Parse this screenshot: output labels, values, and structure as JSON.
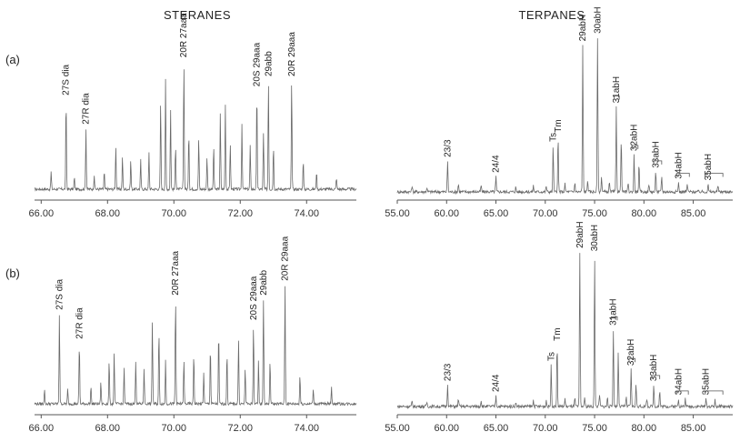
{
  "headers": {
    "steranes": "STERANES",
    "terpanes": "TERPANES"
  },
  "rows": [
    "(a)",
    "(b)"
  ],
  "chart_data": [
    {
      "type": "line",
      "panel": "steranes",
      "row": "(a)",
      "xlim": [
        65.8,
        75.5
      ],
      "ticks": [
        "66.00",
        "68.00",
        "70.00",
        "72.00",
        "74.00"
      ],
      "tick_values": [
        66,
        68,
        70,
        72,
        74
      ],
      "baseline": 0.05,
      "peaks": [
        {
          "x": 66.3,
          "h": 0.12
        },
        {
          "x": 66.75,
          "h": 0.62,
          "label": "27S dia"
        },
        {
          "x": 67.0,
          "h": 0.08
        },
        {
          "x": 67.35,
          "h": 0.42,
          "label": "27R dia"
        },
        {
          "x": 67.6,
          "h": 0.1
        },
        {
          "x": 67.9,
          "h": 0.12
        },
        {
          "x": 68.25,
          "h": 0.3
        },
        {
          "x": 68.45,
          "h": 0.22
        },
        {
          "x": 68.7,
          "h": 0.2
        },
        {
          "x": 69.0,
          "h": 0.2
        },
        {
          "x": 69.25,
          "h": 0.25
        },
        {
          "x": 69.6,
          "h": 0.6
        },
        {
          "x": 69.75,
          "h": 0.75
        },
        {
          "x": 69.9,
          "h": 0.55
        },
        {
          "x": 70.05,
          "h": 0.3
        },
        {
          "x": 70.3,
          "h": 0.88,
          "label": "20R 27aaa"
        },
        {
          "x": 70.45,
          "h": 0.4
        },
        {
          "x": 70.75,
          "h": 0.35
        },
        {
          "x": 71.0,
          "h": 0.22
        },
        {
          "x": 71.2,
          "h": 0.3
        },
        {
          "x": 71.4,
          "h": 0.52
        },
        {
          "x": 71.55,
          "h": 0.58
        },
        {
          "x": 71.7,
          "h": 0.32
        },
        {
          "x": 72.05,
          "h": 0.45
        },
        {
          "x": 72.3,
          "h": 0.3
        },
        {
          "x": 72.5,
          "h": 0.68,
          "label": "20S 29aaa"
        },
        {
          "x": 72.7,
          "h": 0.38
        },
        {
          "x": 72.85,
          "h": 0.75,
          "label": "29abb"
        },
        {
          "x": 73.0,
          "h": 0.3
        },
        {
          "x": 73.55,
          "h": 0.75,
          "label": "20R 29aaa"
        },
        {
          "x": 73.9,
          "h": 0.2
        },
        {
          "x": 74.3,
          "h": 0.12
        },
        {
          "x": 74.9,
          "h": 0.08
        }
      ]
    },
    {
      "type": "line",
      "panel": "terpanes",
      "row": "(a)",
      "xlim": [
        55.0,
        89.0
      ],
      "ticks": [
        "55.00",
        "60.00",
        "65.00",
        "70.00",
        "75.00",
        "80.00",
        "85.00"
      ],
      "tick_values": [
        55,
        60,
        65,
        70,
        75,
        80,
        85
      ],
      "baseline": 0.03,
      "peaks": [
        {
          "x": 56.5,
          "h": 0.04
        },
        {
          "x": 58.0,
          "h": 0.03
        },
        {
          "x": 60.1,
          "h": 0.2,
          "label": "23/3"
        },
        {
          "x": 61.2,
          "h": 0.05
        },
        {
          "x": 63.5,
          "h": 0.04
        },
        {
          "x": 65.0,
          "h": 0.1,
          "label": "24/4"
        },
        {
          "x": 67.0,
          "h": 0.03
        },
        {
          "x": 68.8,
          "h": 0.04
        },
        {
          "x": 70.1,
          "h": 0.04
        },
        {
          "x": 70.8,
          "h": 0.3,
          "label": "Ts"
        },
        {
          "x": 71.3,
          "h": 0.36,
          "label": "Tm"
        },
        {
          "x": 72.0,
          "h": 0.05
        },
        {
          "x": 73.0,
          "h": 0.06
        },
        {
          "x": 73.8,
          "h": 0.95,
          "label": "29abH"
        },
        {
          "x": 74.3,
          "h": 0.08
        },
        {
          "x": 75.3,
          "h": 1.0,
          "label": "30abH"
        },
        {
          "x": 75.7,
          "h": 0.1
        },
        {
          "x": 76.5,
          "h": 0.06
        },
        {
          "x": 77.2,
          "h": 0.55,
          "label": "31abH"
        },
        {
          "x": 77.7,
          "h": 0.35
        },
        {
          "x": 78.4,
          "h": 0.06
        },
        {
          "x": 79.0,
          "h": 0.24,
          "label": "32abH"
        },
        {
          "x": 79.5,
          "h": 0.18
        },
        {
          "x": 80.5,
          "h": 0.05
        },
        {
          "x": 81.2,
          "h": 0.13,
          "label": "33abH"
        },
        {
          "x": 81.8,
          "h": 0.1
        },
        {
          "x": 83.5,
          "h": 0.06,
          "label": "34abH"
        },
        {
          "x": 84.4,
          "h": 0.05
        },
        {
          "x": 86.5,
          "h": 0.05,
          "label": "35abH"
        },
        {
          "x": 87.5,
          "h": 0.04
        }
      ]
    },
    {
      "type": "line",
      "panel": "steranes",
      "row": "(b)",
      "xlim": [
        65.8,
        75.5
      ],
      "ticks": [
        "66.00",
        "68.00",
        "70.00",
        "72.00",
        "74.00"
      ],
      "tick_values": [
        66,
        68,
        70,
        72,
        74
      ],
      "baseline": 0.05,
      "peaks": [
        {
          "x": 66.1,
          "h": 0.1
        },
        {
          "x": 66.55,
          "h": 0.62,
          "label": "27S dia"
        },
        {
          "x": 66.8,
          "h": 0.1
        },
        {
          "x": 67.15,
          "h": 0.42,
          "label": "27R dia"
        },
        {
          "x": 67.5,
          "h": 0.12
        },
        {
          "x": 67.8,
          "h": 0.15
        },
        {
          "x": 68.05,
          "h": 0.3
        },
        {
          "x": 68.2,
          "h": 0.35
        },
        {
          "x": 68.5,
          "h": 0.25
        },
        {
          "x": 68.85,
          "h": 0.3
        },
        {
          "x": 69.1,
          "h": 0.25
        },
        {
          "x": 69.35,
          "h": 0.58
        },
        {
          "x": 69.55,
          "h": 0.5
        },
        {
          "x": 69.75,
          "h": 0.3
        },
        {
          "x": 70.05,
          "h": 0.72,
          "label": "20R 27aaa"
        },
        {
          "x": 70.3,
          "h": 0.3
        },
        {
          "x": 70.6,
          "h": 0.35
        },
        {
          "x": 70.9,
          "h": 0.22
        },
        {
          "x": 71.1,
          "h": 0.4
        },
        {
          "x": 71.35,
          "h": 0.5
        },
        {
          "x": 71.6,
          "h": 0.35
        },
        {
          "x": 71.95,
          "h": 0.45
        },
        {
          "x": 72.15,
          "h": 0.25
        },
        {
          "x": 72.4,
          "h": 0.55,
          "label": "20S 29aaa"
        },
        {
          "x": 72.55,
          "h": 0.3
        },
        {
          "x": 72.7,
          "h": 0.72,
          "label": "29abb"
        },
        {
          "x": 72.9,
          "h": 0.3
        },
        {
          "x": 73.35,
          "h": 0.82,
          "label": "20R 29aaa"
        },
        {
          "x": 73.8,
          "h": 0.2
        },
        {
          "x": 74.2,
          "h": 0.1
        },
        {
          "x": 74.75,
          "h": 0.12
        }
      ]
    },
    {
      "type": "line",
      "panel": "terpanes",
      "row": "(b)",
      "xlim": [
        55.0,
        89.0
      ],
      "ticks": [
        "55.00",
        "60.00",
        "65.00",
        "70.00",
        "75.00",
        "80.00",
        "85.00"
      ],
      "tick_values": [
        55,
        60,
        65,
        70,
        75,
        80,
        85
      ],
      "baseline": 0.03,
      "peaks": [
        {
          "x": 56.5,
          "h": 0.03
        },
        {
          "x": 58.0,
          "h": 0.03
        },
        {
          "x": 60.1,
          "h": 0.14,
          "label": "23/3"
        },
        {
          "x": 61.2,
          "h": 0.05
        },
        {
          "x": 63.5,
          "h": 0.04
        },
        {
          "x": 65.0,
          "h": 0.07,
          "label": "24/4"
        },
        {
          "x": 67.0,
          "h": 0.03
        },
        {
          "x": 68.8,
          "h": 0.04
        },
        {
          "x": 70.1,
          "h": 0.04
        },
        {
          "x": 70.6,
          "h": 0.27,
          "label": "Ts"
        },
        {
          "x": 71.2,
          "h": 0.4,
          "label": "Tm"
        },
        {
          "x": 72.0,
          "h": 0.05
        },
        {
          "x": 73.0,
          "h": 0.05
        },
        {
          "x": 73.5,
          "h": 1.0,
          "label": "29abH"
        },
        {
          "x": 74.0,
          "h": 0.06
        },
        {
          "x": 75.0,
          "h": 0.98,
          "label": "30abH"
        },
        {
          "x": 75.5,
          "h": 0.08
        },
        {
          "x": 76.3,
          "h": 0.06
        },
        {
          "x": 76.9,
          "h": 0.5,
          "label": "31abH"
        },
        {
          "x": 77.4,
          "h": 0.36
        },
        {
          "x": 78.2,
          "h": 0.06
        },
        {
          "x": 78.7,
          "h": 0.24,
          "label": "32abH"
        },
        {
          "x": 79.2,
          "h": 0.15
        },
        {
          "x": 80.3,
          "h": 0.05
        },
        {
          "x": 81.0,
          "h": 0.14,
          "label": "33abH"
        },
        {
          "x": 81.6,
          "h": 0.1
        },
        {
          "x": 83.5,
          "h": 0.05,
          "label": "34abH"
        },
        {
          "x": 84.2,
          "h": 0.05
        },
        {
          "x": 86.3,
          "h": 0.05,
          "label": "35abH"
        },
        {
          "x": 87.2,
          "h": 0.04
        }
      ]
    }
  ],
  "brackets": [
    {
      "chart": 1,
      "x1": 77.0,
      "x2": 77.5,
      "top": 0.62
    },
    {
      "chart": 1,
      "x1": 78.8,
      "x2": 79.4,
      "top": 0.3
    },
    {
      "chart": 1,
      "x1": 81.0,
      "x2": 81.8,
      "top": 0.2
    },
    {
      "chart": 1,
      "x1": 83.3,
      "x2": 84.6,
      "top": 0.12
    },
    {
      "chart": 1,
      "x1": 86.2,
      "x2": 88.0,
      "top": 0.12
    },
    {
      "chart": 3,
      "x1": 76.7,
      "x2": 77.3,
      "top": 0.58
    },
    {
      "chart": 3,
      "x1": 78.5,
      "x2": 79.1,
      "top": 0.31
    },
    {
      "chart": 3,
      "x1": 80.8,
      "x2": 81.6,
      "top": 0.2
    },
    {
      "chart": 3,
      "x1": 83.3,
      "x2": 84.5,
      "top": 0.1
    },
    {
      "chart": 3,
      "x1": 86.2,
      "x2": 88.0,
      "top": 0.1
    }
  ]
}
